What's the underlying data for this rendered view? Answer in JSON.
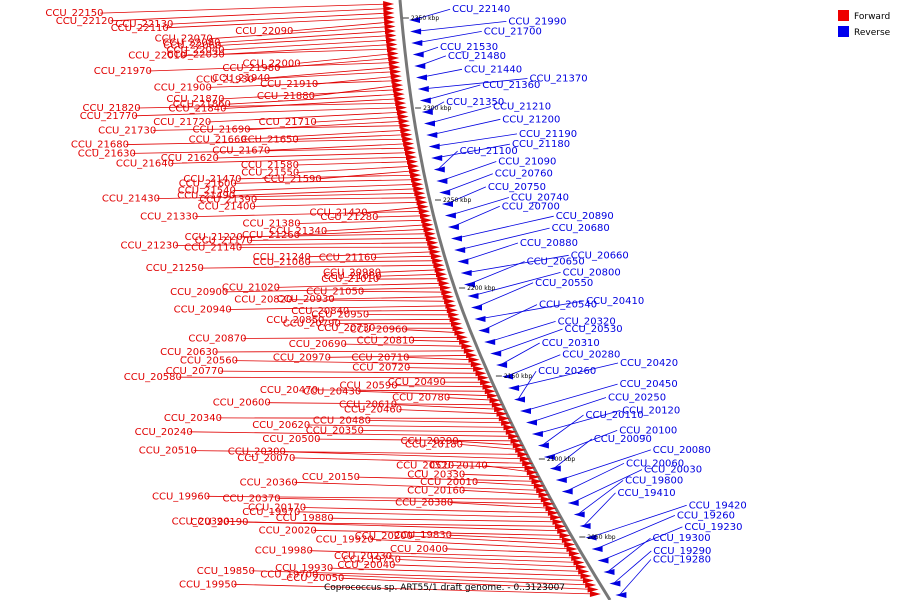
{
  "caption": "Coprococcus sp. ART55/1 draft genome. - 0..3123007",
  "legend": {
    "forward": {
      "label": "Forward",
      "color": "#ee0000"
    },
    "reverse": {
      "label": "Reverse",
      "color": "#0000ee"
    }
  },
  "ticks": [
    "2350 kbp",
    "2300 kbp",
    "2250 kbp",
    "2200 kbp",
    "2150 kbp",
    "2100 kbp",
    "2050 kbp"
  ],
  "forward_genes": [
    "CCU_22150",
    "CCU_22120",
    "CCU_22130",
    "CCU_22110",
    "CCU_22090",
    "CCU_22070",
    "CCU_22080",
    "CCU_22060",
    "CCU_22040",
    "CCU_22030",
    "CCU_22010",
    "CCU_22000",
    "CCU_21980",
    "CCU_21970",
    "CCU_21940",
    "CCU_21930",
    "CCU_21910",
    "CCU_21900",
    "CCU_21880",
    "CCU_21870",
    "CCU_21860",
    "CCU_21840",
    "CCU_21820",
    "CCU_21770",
    "CCU_21720",
    "CCU_21710",
    "CCU_21690",
    "CCU_21730",
    "CCU_21660",
    "CCU_21650",
    "CCU_21680",
    "CCU_21670",
    "CCU_21630",
    "CCU_21620",
    "CCU_21640",
    "CCU_21580",
    "CCU_21550",
    "CCU_21590",
    "CCU_21470",
    "CCU_21600",
    "CCU_21540",
    "CCU_21490",
    "CCU_21430",
    "CCU_21390",
    "CCU_21400",
    "CCU_21420",
    "CCU_21330",
    "CCU_21280",
    "CCU_21380",
    "CCU_21340",
    "CCU_21260",
    "CCU_21220",
    "CCU_21170",
    "CCU_21230",
    "CCU_21140",
    "CCU_21240",
    "CCU_21160",
    "CCU_21060",
    "CCU_21250",
    "CCU_20980",
    "CCU_21080",
    "CCU_21010",
    "CCU_21020",
    "CCU_20900",
    "CCU_21050",
    "CCU_20930",
    "CCU_20820",
    "CCU_20940",
    "CCU_20840",
    "CCU_20950",
    "CCU_20850",
    "CCU_20790",
    "CCU_20730",
    "CCU_20960",
    "CCU_20870",
    "CCU_20810",
    "CCU_20690",
    "CCU_20630",
    "CCU_20970",
    "CCU_20710",
    "CCU_20560",
    "CCU_20720",
    "CCU_20770",
    "CCU_20580",
    "CCU_20490",
    "CCU_20590",
    "CCU_20470",
    "CCU_20430",
    "CCU_20780",
    "CCU_20600",
    "CCU_20610",
    "CCU_20460",
    "CCU_20340",
    "CCU_20480",
    "CCU_20620",
    "CCU_20350",
    "CCU_20240",
    "CCU_20500",
    "CCU_20290",
    "CCU_20180",
    "CCU_20510",
    "CCU_20300",
    "CCU_20070",
    "CCU_20520",
    "CCU_20140",
    "CCU_20330",
    "CCU_20150",
    "CCU_20010",
    "CCU_20360",
    "CCU_20160",
    "CCU_19960",
    "CCU_20370",
    "CCU_20380",
    "CCU_20170",
    "CCU_19970",
    "CCU_19880",
    "CCU_20190",
    "CCU_20390",
    "CCU_20020",
    "CCU_19830",
    "CCU_20200",
    "CCU_19920",
    "CCU_20400",
    "CCU_19980",
    "CCU_20230",
    "CCU_19750",
    "CCU_20040",
    "CCU_19930",
    "CCU_19850",
    "CCU_19700",
    "CCU_20050",
    "CCU_19950"
  ],
  "reverse_genes": [
    "CCU_22140",
    "CCU_21990",
    "CCU_21700",
    "CCU_21530",
    "CCU_21480",
    "CCU_21440",
    "CCU_21370",
    "CCU_21360",
    "CCU_21350",
    "CCU_21210",
    "CCU_21200",
    "CCU_21190",
    "CCU_21180",
    "CCU_21100",
    "CCU_21090",
    "CCU_20760",
    "CCU_20750",
    "CCU_20740",
    "CCU_20700",
    "CCU_20890",
    "CCU_20680",
    "CCU_20880",
    "CCU_20660",
    "CCU_20650",
    "CCU_20800",
    "CCU_20550",
    "CCU_20410",
    "CCU_20540",
    "CCU_20320",
    "CCU_20530",
    "CCU_20310",
    "CCU_20280",
    "CCU_20420",
    "CCU_20260",
    "CCU_20450",
    "CCU_20250",
    "CCU_20120",
    "CCU_20110",
    "CCU_20100",
    "CCU_20090",
    "CCU_20080",
    "CCU_20060",
    "CCU_20030",
    "CCU_19800",
    "CCU_19410",
    "CCU_19420",
    "CCU_19260",
    "CCU_19230",
    "CCU_19300",
    "CCU_19290",
    "CCU_19280"
  ]
}
